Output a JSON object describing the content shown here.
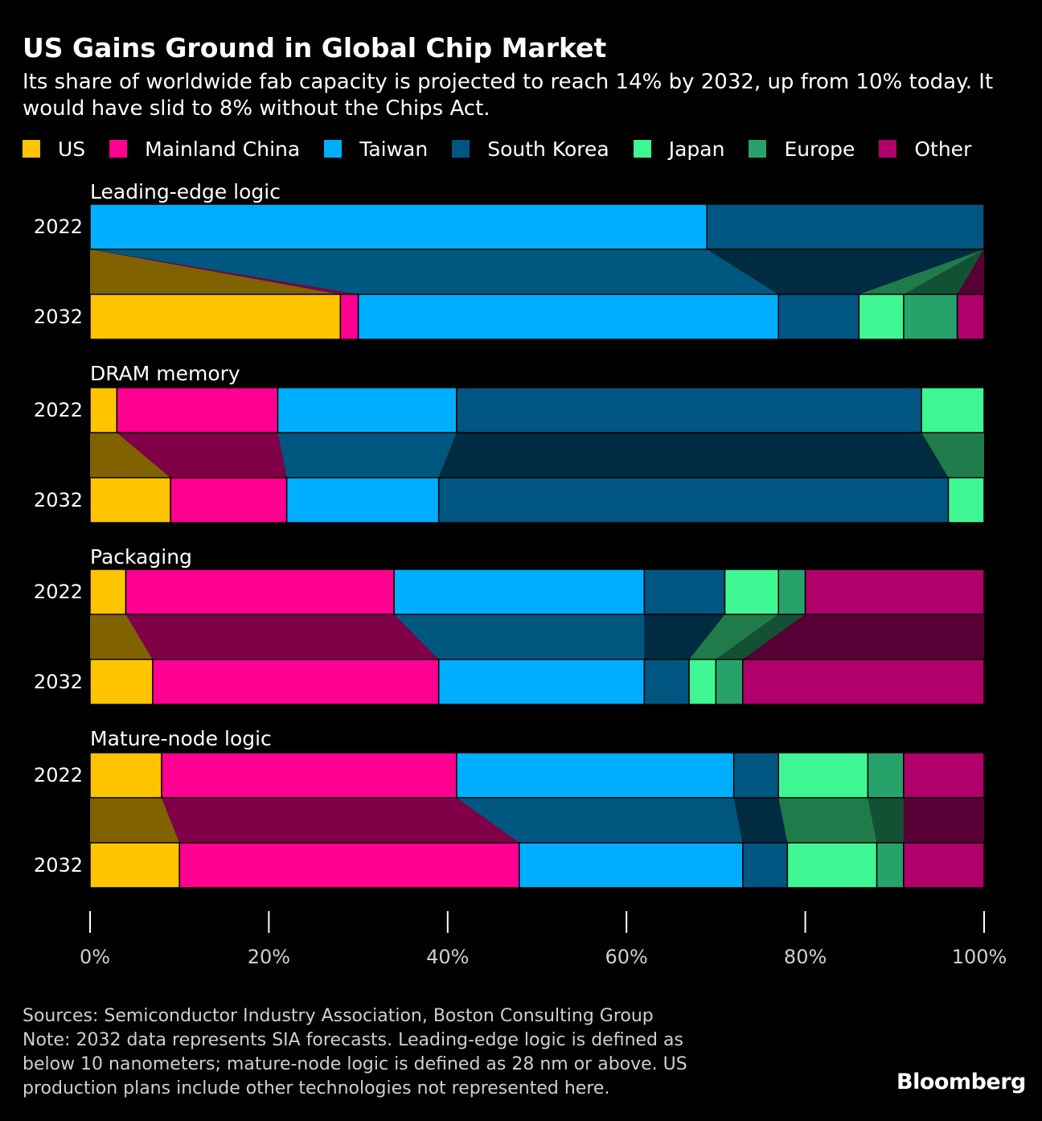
{
  "title": "US Gains Ground in Global Chip Market",
  "subtitle": "Its share of worldwide fab capacity is projected to reach 14% by 2032, up from 10% today. It would have slid to 8% without the Chips Act.",
  "legend": [
    {
      "label": "US",
      "color": "#FFC400"
    },
    {
      "label": "Mainland China",
      "color": "#FF0090"
    },
    {
      "label": "Taiwan",
      "color": "#00AEFF"
    },
    {
      "label": "South Korea",
      "color": "#005680"
    },
    {
      "label": "Japan",
      "color": "#3EF793"
    },
    {
      "label": "Europe",
      "color": "#26A26A"
    },
    {
      "label": "Other",
      "color": "#B0006A"
    }
  ],
  "chart_data": {
    "type": "bar",
    "orientation": "horizontal",
    "stacked": "100%",
    "series_names": [
      "US",
      "Mainland China",
      "Taiwan",
      "South Korea",
      "Japan",
      "Europe",
      "Other"
    ],
    "panels": [
      {
        "title": "Leading-edge logic",
        "rows": [
          {
            "year": "2022",
            "values": [
              0,
              0,
              69,
              31,
              0,
              0,
              0
            ]
          },
          {
            "year": "2032",
            "values": [
              28,
              2,
              47,
              9,
              5,
              6,
              3
            ]
          }
        ]
      },
      {
        "title": "DRAM memory",
        "rows": [
          {
            "year": "2022",
            "values": [
              3,
              18,
              20,
              52,
              7,
              0,
              0
            ]
          },
          {
            "year": "2032",
            "values": [
              9,
              13,
              17,
              57,
              4,
              0,
              0
            ]
          }
        ]
      },
      {
        "title": "Packaging",
        "rows": [
          {
            "year": "2022",
            "values": [
              4,
              30,
              28,
              9,
              6,
              3,
              20
            ]
          },
          {
            "year": "2032",
            "values": [
              7,
              32,
              23,
              5,
              3,
              3,
              27
            ]
          }
        ]
      },
      {
        "title": "Mature-node logic",
        "rows": [
          {
            "year": "2022",
            "values": [
              8,
              33,
              31,
              5,
              10,
              4,
              9
            ]
          },
          {
            "year": "2032",
            "values": [
              10,
              38,
              25,
              5,
              10,
              3,
              9
            ]
          }
        ]
      }
    ],
    "x_ticks": [
      "0%",
      "20%",
      "40%",
      "60%",
      "80%",
      "100%"
    ],
    "xlim": [
      0,
      100
    ]
  },
  "footer": {
    "sources": "Sources: Semiconductor Industry Association, Boston Consulting Group",
    "note_line1": "Note: 2032 data represents SIA forecasts. Leading-edge logic is defined as",
    "note_line2": "below 10 nanometers; mature-node logic is defined as 28 nm or above. US",
    "note_line3": "production plans include other technologies not represented here."
  },
  "brand": "Bloomberg"
}
